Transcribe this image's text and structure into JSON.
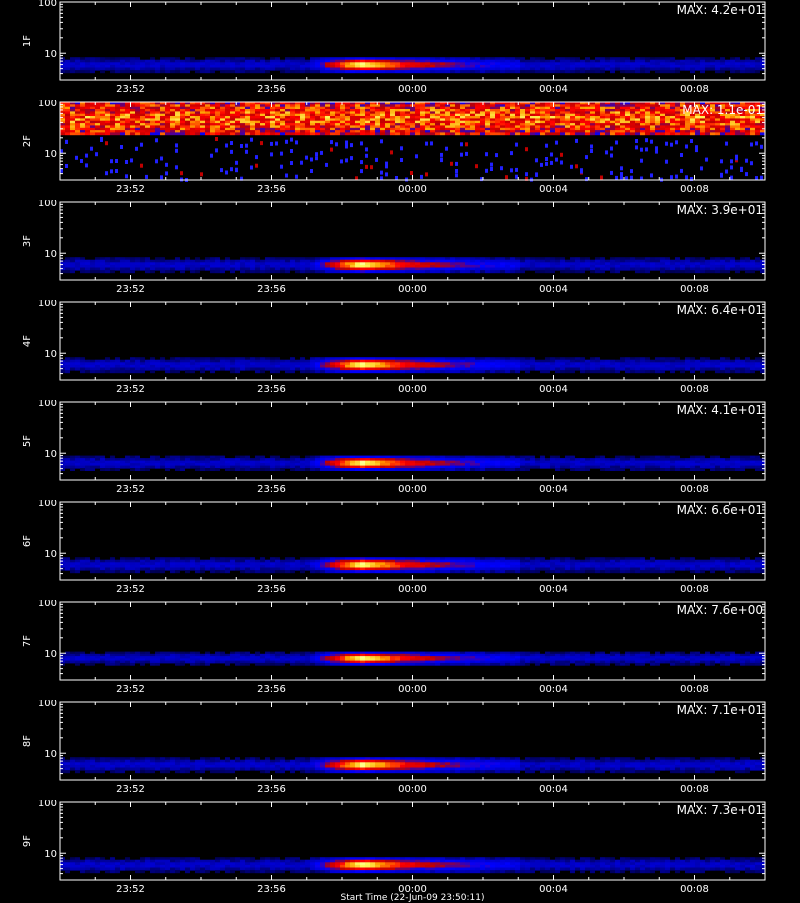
{
  "chart_data": {
    "type": "heatmap",
    "y_scale": "log",
    "ylim": [
      3,
      100
    ],
    "y_tick_labels": [
      "100",
      "10"
    ],
    "x_tick_labels": [
      "23:52",
      "23:56",
      "00:00",
      "00:04",
      "00:08"
    ],
    "x_range": [
      "23:50",
      "00:10"
    ],
    "colormap": [
      "#000000",
      "#0000c0",
      "#0000ff",
      "#c00000",
      "#ff0000",
      "#ffa000",
      "#ffff60",
      "#ffffff"
    ],
    "footer": "Start Time (22-Jun-09 23:50:11)",
    "panels": [
      {
        "label": "1F",
        "max": "MAX: 4.2e+01",
        "band_low": 5,
        "band_high": 7,
        "peak_start": "23:57",
        "peak_end": "00:03",
        "pattern": "burst"
      },
      {
        "label": "2F",
        "max": "MAX: 1.1e-01",
        "band_low": 30,
        "band_high": 70,
        "peak_start": "23:50",
        "peak_end": "00:10",
        "pattern": "noise"
      },
      {
        "label": "3F",
        "max": "MAX: 3.9e+01",
        "band_low": 5,
        "band_high": 7,
        "peak_start": "23:57",
        "peak_end": "00:03",
        "pattern": "burst"
      },
      {
        "label": "4F",
        "max": "MAX: 6.4e+01",
        "band_low": 5,
        "band_high": 7,
        "peak_start": "23:57",
        "peak_end": "00:03",
        "pattern": "burst"
      },
      {
        "label": "5F",
        "max": "MAX: 4.1e+01",
        "band_low": 5.5,
        "band_high": 7.5,
        "peak_start": "23:57",
        "peak_end": "00:03",
        "pattern": "burst"
      },
      {
        "label": "6F",
        "max": "MAX: 6.6e+01",
        "band_low": 5,
        "band_high": 7,
        "peak_start": "23:57",
        "peak_end": "00:03",
        "pattern": "burst"
      },
      {
        "label": "7F",
        "max": "MAX: 7.6e+00",
        "band_low": 7,
        "band_high": 9,
        "peak_start": "23:57",
        "peak_end": "00:03",
        "pattern": "burst"
      },
      {
        "label": "8F",
        "max": "MAX: 7.1e+01",
        "band_low": 5,
        "band_high": 7,
        "peak_start": "23:57",
        "peak_end": "00:03",
        "pattern": "burst"
      },
      {
        "label": "9F",
        "max": "MAX: 7.3e+01",
        "band_low": 5,
        "band_high": 7,
        "peak_start": "23:57",
        "peak_end": "00:03",
        "pattern": "burst"
      }
    ]
  }
}
